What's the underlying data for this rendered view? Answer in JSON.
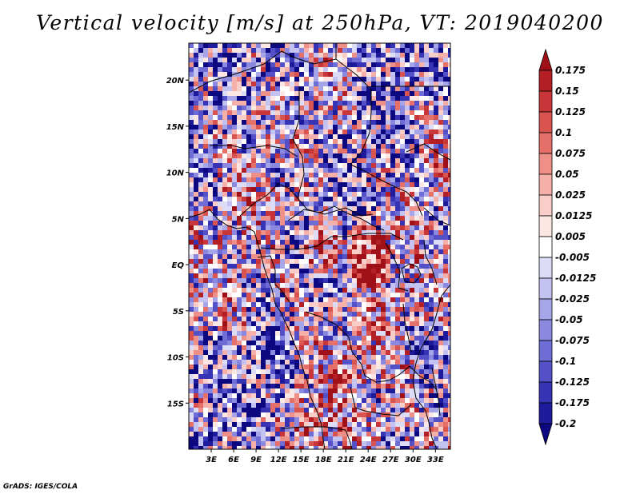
{
  "title": "Vertical velocity [m/s] at 250hPa, VT: 2019040200",
  "credit": "GrADS: IGES/COLA",
  "map": {
    "lon_range": [
      0,
      35
    ],
    "lat_range": [
      -20,
      24
    ],
    "lat_ticks": [
      "20N",
      "15N",
      "10N",
      "5N",
      "EQ",
      "5S",
      "10S",
      "15S"
    ],
    "lon_ticks": [
      "3E",
      "6E",
      "9E",
      "12E",
      "15E",
      "18E",
      "21E",
      "24E",
      "27E",
      "30E",
      "33E"
    ]
  },
  "colorbar": {
    "levels": [
      "0.175",
      "0.15",
      "0.125",
      "0.1",
      "0.075",
      "0.05",
      "0.025",
      "0.0125",
      "0.005",
      "-0.005",
      "-0.0125",
      "-0.025",
      "-0.05",
      "-0.075",
      "-0.1",
      "-0.125",
      "-0.175",
      "-0.2"
    ],
    "colors": [
      "#a01018",
      "#b41f26",
      "#c8363a",
      "#d9534f",
      "#e57069",
      "#ee8f88",
      "#f5b0aa",
      "#f9cdc8",
      "#fce7e4",
      "#ffffff",
      "#dcdcf6",
      "#c3c2f0",
      "#a6a5e8",
      "#8a89df",
      "#6e6dd5",
      "#5350c8",
      "#3633b4",
      "#1d1a9c",
      "#0c0880"
    ]
  }
}
